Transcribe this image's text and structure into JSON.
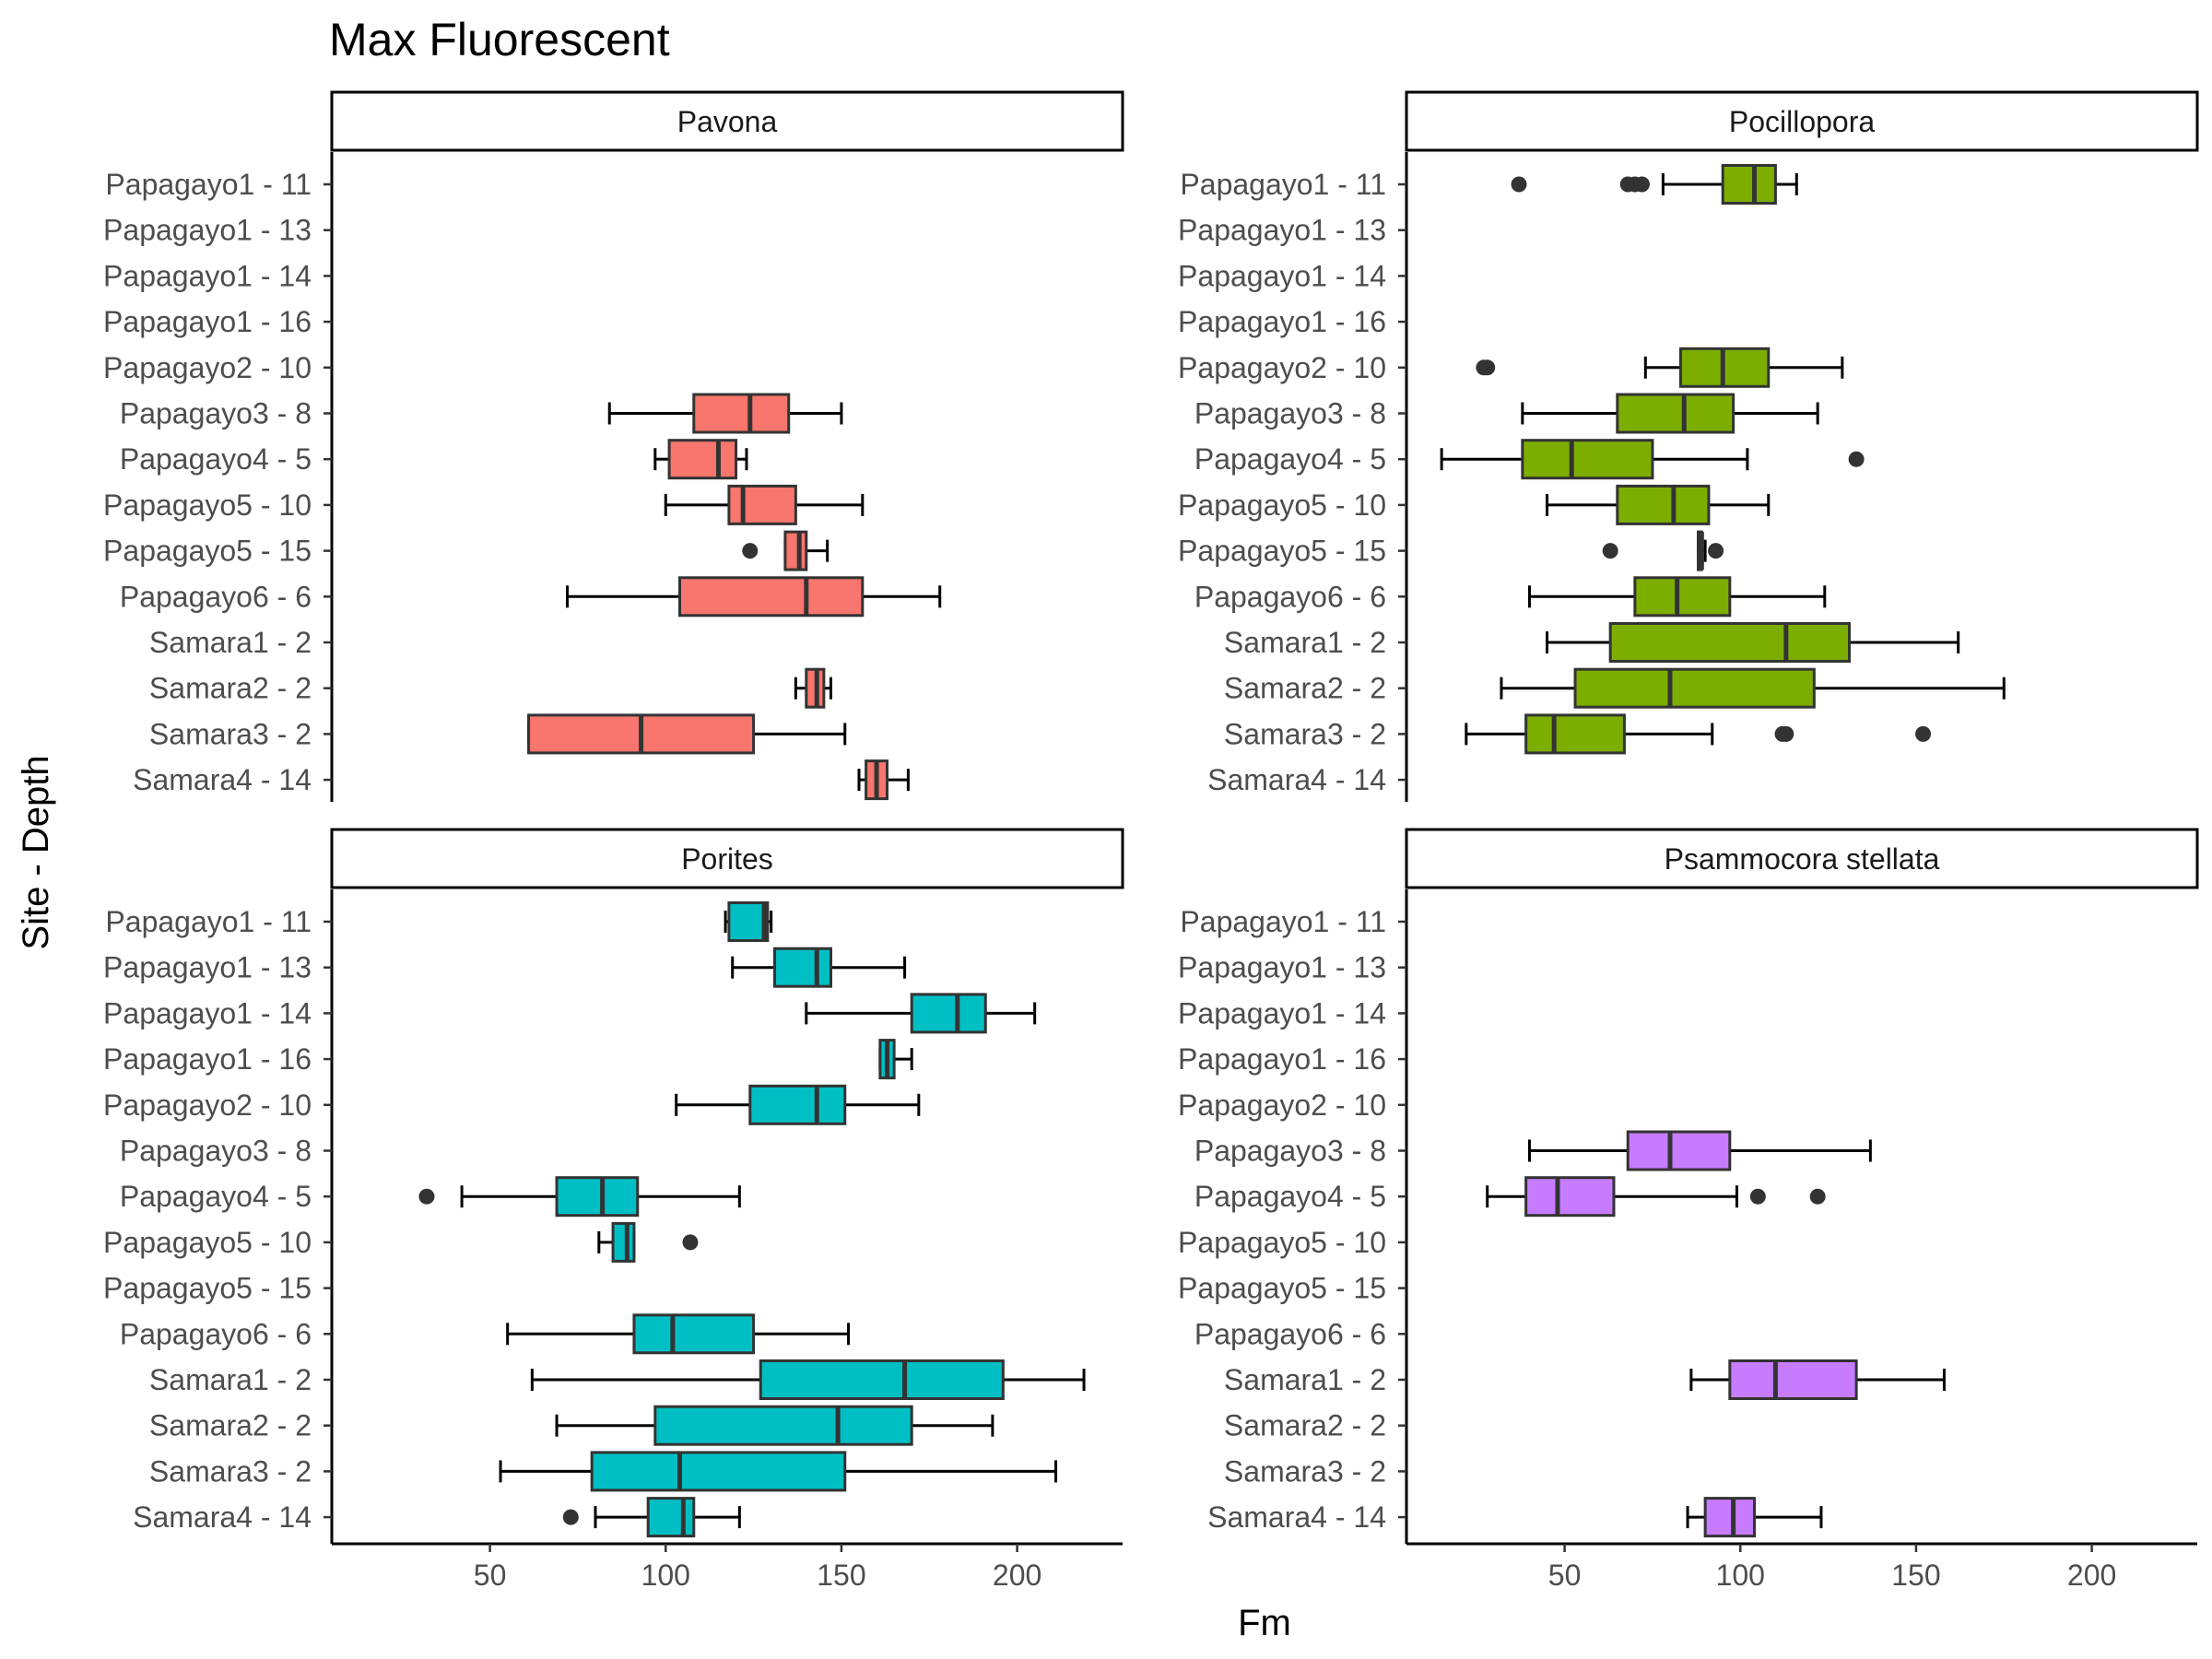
{
  "chart_data": {
    "type": "boxplot",
    "title": "Max Fluorescent",
    "xlabel": "Fm",
    "ylabel": "Site - Depth",
    "xlim": [
      5,
      230
    ],
    "xticks": [
      50,
      100,
      150,
      200
    ],
    "categories": [
      "Papagayo1 - 11",
      "Papagayo1 - 13",
      "Papagayo1 - 14",
      "Papagayo1 - 16",
      "Papagayo2 - 10",
      "Papagayo3 - 8",
      "Papagayo4 - 5",
      "Papagayo5 - 10",
      "Papagayo5 - 15",
      "Papagayo6 - 6",
      "Samara1 - 2",
      "Samara2 - 2",
      "Samara3 - 2",
      "Samara4 - 14"
    ],
    "grid": false,
    "legend": "none",
    "panels": [
      {
        "name": "Pavona",
        "color": "#F8766D",
        "boxes": [
          {
            "category": "Papagayo3 - 8",
            "whisker_low": 84,
            "q1": 108,
            "median": 124,
            "q3": 135,
            "whisker_high": 150,
            "outliers": []
          },
          {
            "category": "Papagayo4 - 5",
            "whisker_low": 97,
            "q1": 101,
            "median": 115,
            "q3": 120,
            "whisker_high": 123,
            "outliers": []
          },
          {
            "category": "Papagayo5 - 10",
            "whisker_low": 100,
            "q1": 118,
            "median": 122,
            "q3": 137,
            "whisker_high": 156,
            "outliers": []
          },
          {
            "category": "Papagayo5 - 15",
            "whisker_low": 134,
            "q1": 134,
            "median": 138,
            "q3": 140,
            "whisker_high": 146,
            "outliers": [
              124
            ]
          },
          {
            "category": "Papagayo6 - 6",
            "whisker_low": 72,
            "q1": 104,
            "median": 140,
            "q3": 156,
            "whisker_high": 178,
            "outliers": []
          },
          {
            "category": "Samara2 - 2",
            "whisker_low": 137,
            "q1": 140,
            "median": 143,
            "q3": 145,
            "whisker_high": 147,
            "outliers": []
          },
          {
            "category": "Samara3 - 2",
            "whisker_low": 61,
            "q1": 61,
            "median": 93,
            "q3": 125,
            "whisker_high": 151,
            "outliers": []
          },
          {
            "category": "Samara4 - 14",
            "whisker_low": 155,
            "q1": 157,
            "median": 160,
            "q3": 163,
            "whisker_high": 169,
            "outliers": []
          }
        ]
      },
      {
        "name": "Pocillopora",
        "color": "#7CAE00",
        "boxes": [
          {
            "category": "Papagayo1 - 11",
            "whisker_low": 78,
            "q1": 95,
            "median": 104,
            "q3": 110,
            "whisker_high": 116,
            "outliers": [
              37,
              68,
              70,
              72
            ]
          },
          {
            "category": "Papagayo2 - 10",
            "whisker_low": 73,
            "q1": 83,
            "median": 95,
            "q3": 108,
            "whisker_high": 129,
            "outliers": [
              27,
              28
            ]
          },
          {
            "category": "Papagayo3 - 8",
            "whisker_low": 38,
            "q1": 65,
            "median": 84,
            "q3": 98,
            "whisker_high": 122,
            "outliers": []
          },
          {
            "category": "Papagayo4 - 5",
            "whisker_low": 15,
            "q1": 38,
            "median": 52,
            "q3": 75,
            "whisker_high": 102,
            "outliers": [
              133
            ]
          },
          {
            "category": "Papagayo5 - 10",
            "whisker_low": 45,
            "q1": 65,
            "median": 81,
            "q3": 91,
            "whisker_high": 108,
            "outliers": []
          },
          {
            "category": "Papagayo5 - 15",
            "whisker_low": 88,
            "q1": 88,
            "median": 89,
            "q3": 89,
            "whisker_high": 90,
            "outliers": [
              63,
              93
            ]
          },
          {
            "category": "Papagayo6 - 6",
            "whisker_low": 40,
            "q1": 70,
            "median": 82,
            "q3": 97,
            "whisker_high": 124,
            "outliers": []
          },
          {
            "category": "Samara1 - 2",
            "whisker_low": 45,
            "q1": 63,
            "median": 113,
            "q3": 131,
            "whisker_high": 162,
            "outliers": []
          },
          {
            "category": "Samara2 - 2",
            "whisker_low": 32,
            "q1": 53,
            "median": 80,
            "q3": 121,
            "whisker_high": 175,
            "outliers": []
          },
          {
            "category": "Samara3 - 2",
            "whisker_low": 22,
            "q1": 39,
            "median": 47,
            "q3": 67,
            "whisker_high": 92,
            "outliers": [
              112,
              113,
              152
            ]
          }
        ]
      },
      {
        "name": "Porites",
        "color": "#00BFC4",
        "boxes": [
          {
            "category": "Papagayo1 - 11",
            "whisker_low": 117,
            "q1": 118,
            "median": 128,
            "q3": 129,
            "whisker_high": 130,
            "outliers": []
          },
          {
            "category": "Papagayo1 - 13",
            "whisker_low": 119,
            "q1": 131,
            "median": 143,
            "q3": 147,
            "whisker_high": 168,
            "outliers": []
          },
          {
            "category": "Papagayo1 - 14",
            "whisker_low": 140,
            "q1": 170,
            "median": 183,
            "q3": 191,
            "whisker_high": 205,
            "outliers": []
          },
          {
            "category": "Papagayo1 - 16",
            "whisker_low": 161,
            "q1": 161,
            "median": 163,
            "q3": 165,
            "whisker_high": 170,
            "outliers": []
          },
          {
            "category": "Papagayo2 - 10",
            "whisker_low": 103,
            "q1": 124,
            "median": 143,
            "q3": 151,
            "whisker_high": 172,
            "outliers": []
          },
          {
            "category": "Papagayo4 - 5",
            "whisker_low": 42,
            "q1": 69,
            "median": 82,
            "q3": 92,
            "whisker_high": 121,
            "outliers": [
              32
            ]
          },
          {
            "category": "Papagayo5 - 10",
            "whisker_low": 81,
            "q1": 85,
            "median": 89,
            "q3": 91,
            "whisker_high": 91,
            "outliers": [
              107
            ]
          },
          {
            "category": "Papagayo6 - 6",
            "whisker_low": 55,
            "q1": 91,
            "median": 102,
            "q3": 125,
            "whisker_high": 152,
            "outliers": []
          },
          {
            "category": "Samara1 - 2",
            "whisker_low": 62,
            "q1": 127,
            "median": 168,
            "q3": 196,
            "whisker_high": 219,
            "outliers": []
          },
          {
            "category": "Samara2 - 2",
            "whisker_low": 69,
            "q1": 97,
            "median": 149,
            "q3": 170,
            "whisker_high": 193,
            "outliers": []
          },
          {
            "category": "Samara3 - 2",
            "whisker_low": 53,
            "q1": 79,
            "median": 104,
            "q3": 151,
            "whisker_high": 211,
            "outliers": []
          },
          {
            "category": "Samara4 - 14",
            "whisker_low": 80,
            "q1": 95,
            "median": 105,
            "q3": 108,
            "whisker_high": 121,
            "outliers": [
              73
            ]
          }
        ]
      },
      {
        "name": "Psammocora stellata",
        "color": "#C77CFF",
        "boxes": [
          {
            "category": "Papagayo3 - 8",
            "whisker_low": 40,
            "q1": 68,
            "median": 80,
            "q3": 97,
            "whisker_high": 137,
            "outliers": []
          },
          {
            "category": "Papagayo4 - 5",
            "whisker_low": 28,
            "q1": 39,
            "median": 48,
            "q3": 64,
            "whisker_high": 99,
            "outliers": [
              105,
              122
            ]
          },
          {
            "category": "Samara1 - 2",
            "whisker_low": 86,
            "q1": 97,
            "median": 110,
            "q3": 133,
            "whisker_high": 158,
            "outliers": []
          },
          {
            "category": "Samara4 - 14",
            "whisker_low": 85,
            "q1": 90,
            "median": 98,
            "q3": 104,
            "whisker_high": 123,
            "outliers": []
          }
        ]
      }
    ]
  }
}
